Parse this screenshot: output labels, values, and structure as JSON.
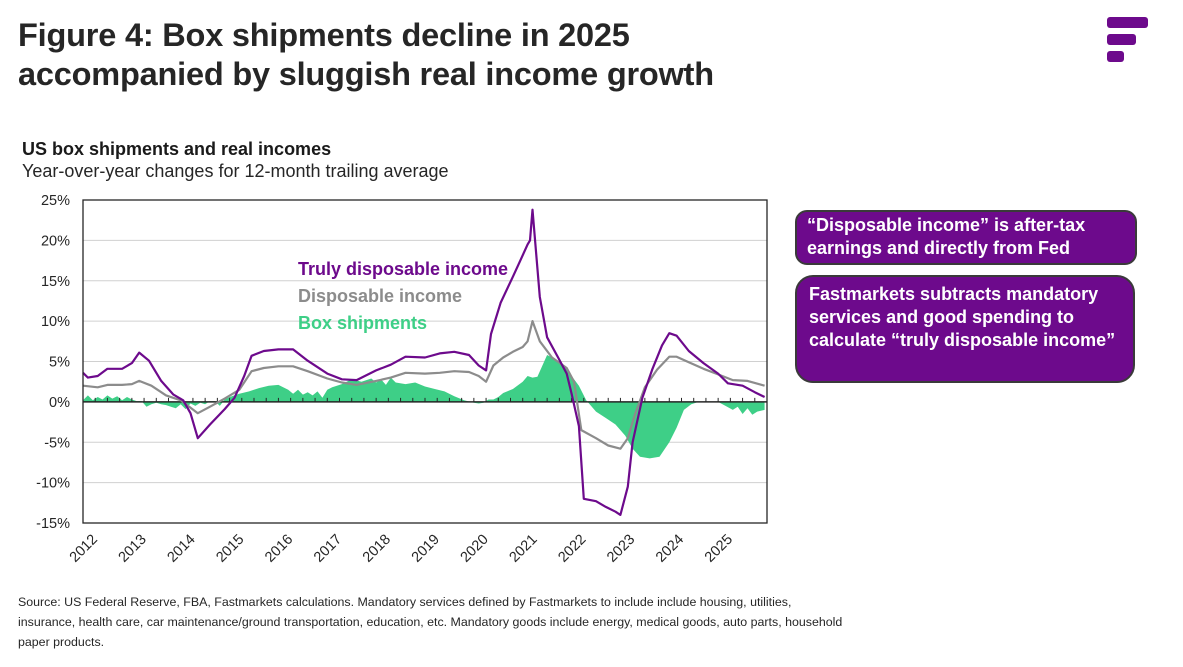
{
  "page": {
    "title_line1": "Figure 4: Box shipments decline in 2025",
    "title_line2": "accompanied by sluggish real income growth",
    "logo": "fastmarkets-logo-icon",
    "callouts": [
      "“Disposable income” is after-tax earnings and directly from Fed",
      "Fastmarkets subtracts mandatory services and good spending to calculate “truly disposable income”"
    ],
    "source": "Source: US Federal Reserve, FBA, Fastmarkets calculations. Mandatory services defined by Fastmarkets to include include housing, utilities, insurance, health care, car maintenance/ground transportation, education, etc. Mandatory goods include energy, medical goods, auto parts, household paper products."
  },
  "colors": {
    "truly_disposable": "#6d0a8c",
    "disposable": "#8c8c8c",
    "box_shipments": "#3ecf87",
    "callout_bg": "#6d0a8c",
    "gridline": "#d0d0d0",
    "axis": "#262626"
  },
  "chart_data": {
    "type": "line",
    "title": "US box shipments and real incomes",
    "subtitle": "Year-over-year changes for 12-month trailing average",
    "xlabel": "",
    "ylabel": "",
    "ylim": [
      -15,
      25
    ],
    "xlim": [
      2012,
      2026
    ],
    "yticks": [
      25,
      20,
      15,
      10,
      5,
      0,
      -5,
      -10,
      -15
    ],
    "ytick_labels": [
      "25%",
      "20%",
      "15%",
      "10%",
      "5%",
      "0%",
      "-5%",
      "-10%",
      "-15%"
    ],
    "xtick_labels": [
      "2012",
      "2013",
      "2014",
      "2015",
      "2016",
      "2017",
      "2018",
      "2019",
      "2020",
      "2021",
      "2022",
      "2023",
      "2024",
      "2025"
    ],
    "grid": true,
    "legend": "inside-top-center",
    "series": [
      {
        "name": "Truly disposable income",
        "kind": "line",
        "x": [
          2012.0,
          2012.1,
          2012.3,
          2012.5,
          2012.8,
          2013.0,
          2013.15,
          2013.35,
          2013.6,
          2013.85,
          2014.05,
          2014.2,
          2014.35,
          2014.6,
          2014.9,
          2015.1,
          2015.3,
          2015.45,
          2015.7,
          2016.0,
          2016.3,
          2016.6,
          2017.0,
          2017.3,
          2017.6,
          2018.0,
          2018.3,
          2018.6,
          2019.0,
          2019.3,
          2019.6,
          2019.9,
          2020.1,
          2020.25,
          2020.35,
          2020.55,
          2020.8,
          2020.95,
          2021.1,
          2021.15,
          2021.2,
          2021.35,
          2021.5,
          2021.75,
          2021.9,
          2022.0,
          2022.15,
          2022.25,
          2022.5,
          2022.7,
          2022.9,
          2023.0,
          2023.15,
          2023.25,
          2023.45,
          2023.65,
          2023.85,
          2024.0,
          2024.15,
          2024.4,
          2024.7,
          2025.0,
          2025.2,
          2025.5,
          2025.75,
          2025.95
        ],
        "values": [
          3.6,
          3.0,
          3.2,
          4.1,
          4.1,
          4.8,
          6.1,
          5.1,
          2.6,
          0.9,
          0.2,
          -1.4,
          -4.5,
          -2.8,
          -0.9,
          0.5,
          3.2,
          5.7,
          6.3,
          6.5,
          6.5,
          5.1,
          3.5,
          2.8,
          2.7,
          3.9,
          4.6,
          5.6,
          5.5,
          6.0,
          6.2,
          5.8,
          4.5,
          3.9,
          8.4,
          12.3,
          15.5,
          17.5,
          19.5,
          20.0,
          23.8,
          13.0,
          8.0,
          5.2,
          3.5,
          1.0,
          -3.0,
          -12.0,
          -12.3,
          -13.0,
          -13.6,
          -14.0,
          -10.5,
          -5.0,
          0.5,
          4.0,
          7.0,
          8.5,
          8.2,
          6.3,
          4.8,
          3.5,
          2.3,
          2.0,
          1.2,
          0.6
        ]
      },
      {
        "name": "Disposable income",
        "kind": "line",
        "x": [
          2012.0,
          2012.3,
          2012.5,
          2012.8,
          2013.0,
          2013.15,
          2013.4,
          2013.7,
          2014.0,
          2014.35,
          2014.6,
          2014.9,
          2015.2,
          2015.45,
          2015.7,
          2016.0,
          2016.3,
          2016.6,
          2017.0,
          2017.3,
          2017.6,
          2018.0,
          2018.3,
          2018.6,
          2019.0,
          2019.3,
          2019.6,
          2019.9,
          2020.1,
          2020.25,
          2020.4,
          2020.6,
          2020.8,
          2021.0,
          2021.1,
          2021.2,
          2021.35,
          2021.6,
          2021.9,
          2022.05,
          2022.2,
          2022.5,
          2022.75,
          2023.0,
          2023.15,
          2023.3,
          2023.5,
          2023.75,
          2024.0,
          2024.15,
          2024.4,
          2024.7,
          2025.0,
          2025.3,
          2025.6,
          2025.95
        ],
        "values": [
          2.0,
          1.8,
          2.1,
          2.1,
          2.2,
          2.6,
          2.0,
          0.8,
          0.2,
          -1.4,
          -0.6,
          0.4,
          1.5,
          3.8,
          4.2,
          4.4,
          4.4,
          3.8,
          2.9,
          2.4,
          2.1,
          2.6,
          3.0,
          3.6,
          3.5,
          3.6,
          3.8,
          3.7,
          3.2,
          2.5,
          4.5,
          5.5,
          6.2,
          6.8,
          7.5,
          10.0,
          7.5,
          5.5,
          4.2,
          2.5,
          -3.5,
          -4.5,
          -5.4,
          -5.8,
          -4.5,
          -1.5,
          1.8,
          4.0,
          5.6,
          5.6,
          4.9,
          4.1,
          3.4,
          2.7,
          2.6,
          2.0
        ]
      },
      {
        "name": "Box shipments",
        "kind": "area",
        "x": [
          2012.0,
          2012.1,
          2012.2,
          2012.3,
          2012.4,
          2012.5,
          2012.6,
          2012.7,
          2012.8,
          2012.9,
          2013.0,
          2013.1,
          2013.2,
          2013.3,
          2013.4,
          2013.5,
          2013.6,
          2013.7,
          2013.8,
          2013.9,
          2014.0,
          2014.1,
          2014.2,
          2014.3,
          2014.4,
          2014.5,
          2014.6,
          2014.7,
          2014.8,
          2014.9,
          2015.0,
          2015.2,
          2015.4,
          2015.6,
          2015.8,
          2016.0,
          2016.2,
          2016.3,
          2016.4,
          2016.5,
          2016.6,
          2016.7,
          2016.8,
          2016.9,
          2017.0,
          2017.1,
          2017.3,
          2017.5,
          2017.7,
          2017.9,
          2018.0,
          2018.1,
          2018.2,
          2018.3,
          2018.4,
          2018.6,
          2018.8,
          2019.0,
          2019.2,
          2019.4,
          2019.6,
          2019.8,
          2020.0,
          2020.1,
          2020.2,
          2020.3,
          2020.4,
          2020.5,
          2020.6,
          2020.8,
          2021.0,
          2021.1,
          2021.2,
          2021.3,
          2021.5,
          2021.7,
          2021.85,
          2022.0,
          2022.15,
          2022.3,
          2022.5,
          2022.7,
          2022.9,
          2023.1,
          2023.25,
          2023.4,
          2023.6,
          2023.8,
          2024.0,
          2024.15,
          2024.3,
          2024.45,
          2024.6,
          2024.8,
          2025.0,
          2025.15,
          2025.3,
          2025.4,
          2025.5,
          2025.6,
          2025.7,
          2025.8,
          2025.95
        ],
        "values": [
          0.2,
          0.8,
          0.2,
          0.6,
          0.3,
          0.8,
          0.4,
          0.7,
          0.2,
          0.6,
          0.3,
          0.1,
          0.1,
          -0.6,
          -0.3,
          -0.1,
          -0.3,
          -0.4,
          -0.6,
          -0.8,
          -0.3,
          -0.9,
          -0.2,
          -0.5,
          -0.1,
          -0.3,
          0.1,
          0.1,
          -0.5,
          0.3,
          0.6,
          1.0,
          1.3,
          1.7,
          2.0,
          2.1,
          1.5,
          1.0,
          1.5,
          0.9,
          1.2,
          0.8,
          1.3,
          0.5,
          1.5,
          1.8,
          2.2,
          2.8,
          2.5,
          2.9,
          2.4,
          2.8,
          2.1,
          3.0,
          2.4,
          2.2,
          2.4,
          1.9,
          1.6,
          1.3,
          0.7,
          0.2,
          -0.1,
          -0.2,
          -0.1,
          0.3,
          0.3,
          0.6,
          1.1,
          1.6,
          2.5,
          3.2,
          3.0,
          3.1,
          5.8,
          5.2,
          4.5,
          3.2,
          2.0,
          0.2,
          -1.2,
          -2.0,
          -2.8,
          -4.2,
          -5.8,
          -6.8,
          -7.0,
          -6.8,
          -5.0,
          -3.2,
          -1.0,
          -0.3,
          0.0,
          0.0,
          0.0,
          -0.5,
          -1.0,
          -0.6,
          -1.5,
          -0.8,
          -1.6,
          -1.2,
          -1.0
        ]
      }
    ]
  }
}
